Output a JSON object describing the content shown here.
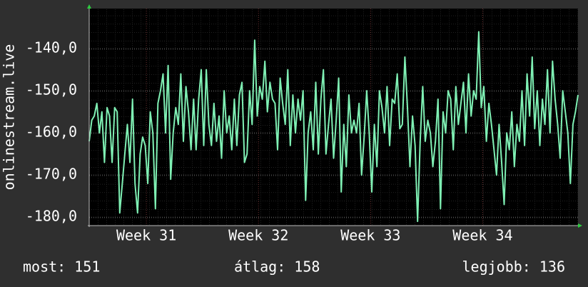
{
  "chart_data": {
    "type": "line",
    "ylabel": "onlinestream.live",
    "ylim": [
      -182,
      -130.5
    ],
    "yticks": [
      {
        "value": -140,
        "label": "-140,0"
      },
      {
        "value": -150,
        "label": "-150,0"
      },
      {
        "value": -160,
        "label": "-160,0"
      },
      {
        "value": -170,
        "label": "-170,0"
      },
      {
        "value": -180,
        "label": "-180,0"
      }
    ],
    "xlim": [
      30.49,
      34.85
    ],
    "xticks": [
      {
        "value": 31,
        "label": "Week 31"
      },
      {
        "value": 32,
        "label": "Week 32"
      },
      {
        "value": 33,
        "label": "Week 33"
      },
      {
        "value": 34,
        "label": "Week 34"
      }
    ],
    "grid": true,
    "series": [
      {
        "color": "#7ff0b4",
        "values": [
          -162,
          -157,
          -156,
          -153,
          -160,
          -155,
          -167,
          -154,
          -156,
          -167,
          -154,
          -155,
          -179,
          -172,
          -165,
          -158,
          -167,
          -152,
          -172,
          -179,
          -165,
          -161,
          -163,
          -172,
          -155,
          -160,
          -178,
          -153,
          -150,
          -146,
          -160,
          -144,
          -171,
          -160,
          -154,
          -158,
          -146,
          -162,
          -149,
          -155,
          -164,
          -152,
          -164,
          -152,
          -145,
          -163,
          -145,
          -158,
          -163,
          -153,
          -162,
          -156,
          -166,
          -150,
          -160,
          -156,
          -164,
          -152,
          -163,
          -151,
          -148,
          -167,
          -165,
          -150,
          -158,
          -138,
          -156,
          -149,
          -152,
          -143,
          -155,
          -148,
          -152,
          -153,
          -164,
          -147,
          -153,
          -158,
          -145,
          -163,
          -151,
          -160,
          -152,
          -157,
          -150,
          -176,
          -160,
          -155,
          -164,
          -148,
          -165,
          -152,
          -145,
          -165,
          -158,
          -152,
          -166,
          -157,
          -147,
          -174,
          -158,
          -168,
          -151,
          -160,
          -157,
          -160,
          -153,
          -170,
          -161,
          -150,
          -160,
          -174,
          -158,
          -168,
          -150,
          -154,
          -160,
          -149,
          -163,
          -152,
          -153,
          -146,
          -159,
          -158,
          -142,
          -154,
          -168,
          -156,
          -163,
          -181,
          -162,
          -149,
          -162,
          -157,
          -160,
          -168,
          -162,
          -152,
          -178,
          -155,
          -160,
          -150,
          -152,
          -164,
          -149,
          -158,
          -153,
          -148,
          -160,
          -146,
          -156,
          -150,
          -152,
          -136,
          -154,
          -149,
          -162,
          -153,
          -158,
          -164,
          -170,
          -158,
          -167,
          -177,
          -160,
          -164,
          -155,
          -168,
          -158,
          -162,
          -150,
          -163,
          -146,
          -156,
          -142,
          -159,
          -150,
          -163,
          -152,
          -158,
          -145,
          -160,
          -143,
          -152,
          -158,
          -166,
          -150,
          -155,
          -160,
          -172,
          -158,
          -155,
          -151
        ]
      }
    ],
    "footer": [
      "most: 151",
      "átlag: 158",
      "legjobb: 136"
    ]
  }
}
